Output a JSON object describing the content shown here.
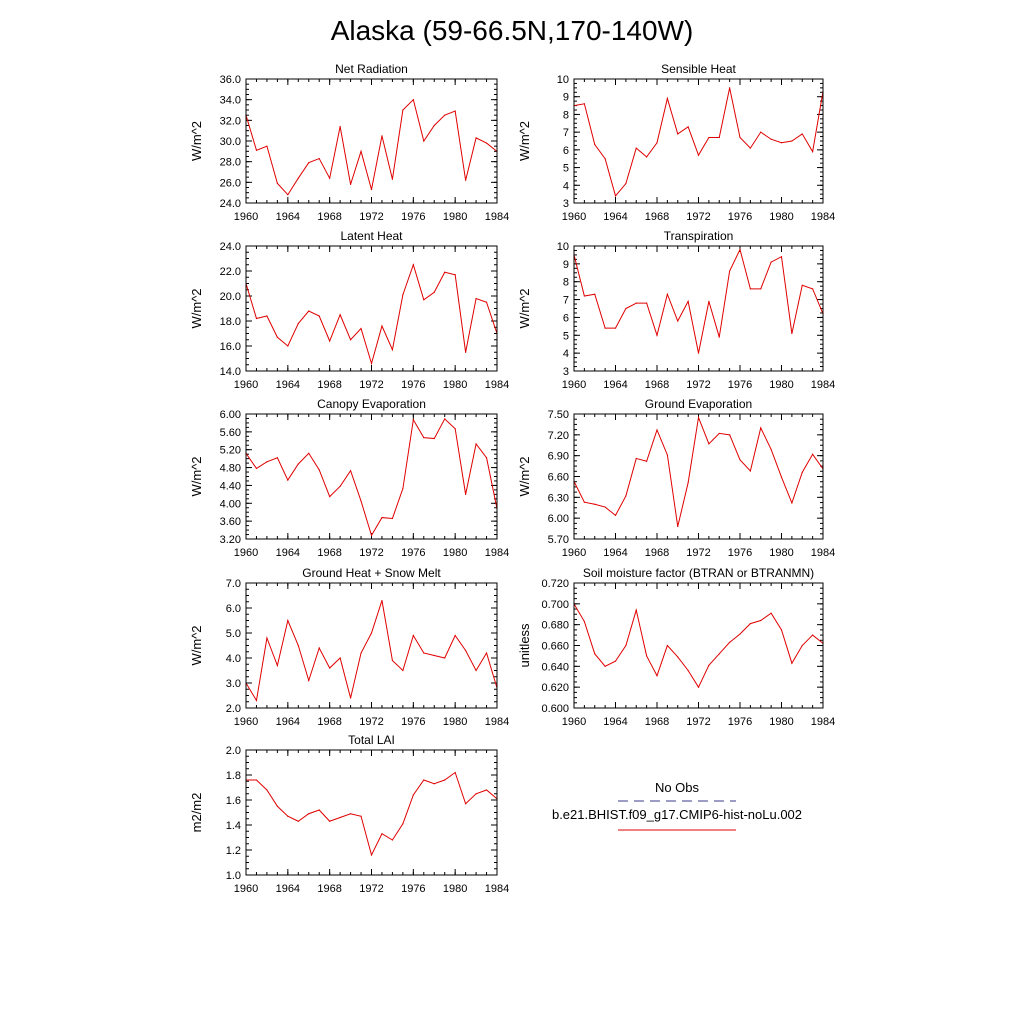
{
  "figure": {
    "title": "Alaska (59-66.5N,170-140W)",
    "legend": {
      "obs_label": "No Obs",
      "model_label": "b.e21.BHIST.f09_g17.CMIP6-hist-noLu.002",
      "obs_color": "#3a3a8c",
      "model_color": "#e00000"
    }
  },
  "chart_data": [
    {
      "type": "line",
      "title": "Net Radiation",
      "ylabel": "W/m^2",
      "xlim": [
        1960,
        1984
      ],
      "xticks": [
        1960,
        1964,
        1968,
        1972,
        1976,
        1980,
        1984
      ],
      "xtick_labels": [
        "1960",
        "1964",
        "1968",
        "1972",
        "1976",
        "1980",
        "1984"
      ],
      "ylim": [
        24,
        36
      ],
      "yticks": [
        24,
        26,
        28,
        30,
        32,
        34,
        36
      ],
      "ytick_labels": [
        "24.0",
        "26.0",
        "28.0",
        "30.0",
        "32.0",
        "34.0",
        "36.0"
      ],
      "series": [
        {
          "color": "#e00000",
          "x": [
            1960,
            1961,
            1962,
            1963,
            1964,
            1965,
            1966,
            1967,
            1968,
            1969,
            1970,
            1971,
            1972,
            1973,
            1974,
            1975,
            1976,
            1977,
            1978,
            1979,
            1980,
            1981,
            1982,
            1983,
            1984
          ],
          "values": [
            32.5,
            29.1,
            29.5,
            25.9,
            24.8,
            26.4,
            27.9,
            28.3,
            26.4,
            31.4,
            25.8,
            29.0,
            25.3,
            30.5,
            26.3,
            33.0,
            34.0,
            30.0,
            31.5,
            32.5,
            32.9,
            26.2,
            30.3,
            29.8,
            29.0
          ]
        }
      ]
    },
    {
      "type": "line",
      "title": "Sensible Heat",
      "ylabel": "W/m^2",
      "xlim": [
        1960,
        1984
      ],
      "xticks": [
        1960,
        1964,
        1968,
        1972,
        1976,
        1980,
        1984
      ],
      "xtick_labels": [
        "1960",
        "1964",
        "1968",
        "1972",
        "1976",
        "1980",
        "1984"
      ],
      "ylim": [
        3,
        10
      ],
      "yticks": [
        3,
        4,
        5,
        6,
        7,
        8,
        9,
        10
      ],
      "ytick_labels": [
        "3",
        "4",
        "5",
        "6",
        "7",
        "8",
        "9",
        "10"
      ],
      "series": [
        {
          "color": "#e00000",
          "x": [
            1960,
            1961,
            1962,
            1963,
            1964,
            1965,
            1966,
            1967,
            1968,
            1969,
            1970,
            1971,
            1972,
            1973,
            1974,
            1975,
            1976,
            1977,
            1978,
            1979,
            1980,
            1981,
            1982,
            1983,
            1984
          ],
          "values": [
            8.5,
            8.6,
            6.3,
            5.5,
            3.4,
            4.1,
            6.1,
            5.6,
            6.4,
            8.9,
            6.9,
            7.3,
            5.7,
            6.7,
            6.7,
            9.5,
            6.7,
            6.1,
            7.0,
            6.6,
            6.4,
            6.5,
            6.9,
            5.9,
            9.3
          ]
        }
      ]
    },
    {
      "type": "line",
      "title": "Latent Heat",
      "ylabel": "W/m^2",
      "xlim": [
        1960,
        1984
      ],
      "xticks": [
        1960,
        1964,
        1968,
        1972,
        1976,
        1980,
        1984
      ],
      "xtick_labels": [
        "1960",
        "1964",
        "1968",
        "1972",
        "1976",
        "1980",
        "1984"
      ],
      "ylim": [
        14,
        24
      ],
      "yticks": [
        14,
        16,
        18,
        20,
        22,
        24
      ],
      "ytick_labels": [
        "14.0",
        "16.0",
        "18.0",
        "20.0",
        "22.0",
        "24.0"
      ],
      "series": [
        {
          "color": "#e00000",
          "x": [
            1960,
            1961,
            1962,
            1963,
            1964,
            1965,
            1966,
            1967,
            1968,
            1969,
            1970,
            1971,
            1972,
            1973,
            1974,
            1975,
            1976,
            1977,
            1978,
            1979,
            1980,
            1981,
            1982,
            1983,
            1984
          ],
          "values": [
            21.0,
            18.2,
            18.4,
            16.7,
            16.0,
            17.8,
            18.8,
            18.4,
            16.4,
            18.5,
            16.5,
            17.4,
            14.6,
            17.6,
            15.7,
            20.1,
            22.5,
            19.7,
            20.3,
            21.9,
            21.7,
            15.5,
            19.8,
            19.5,
            17.0
          ]
        }
      ]
    },
    {
      "type": "line",
      "title": "Transpiration",
      "ylabel": "W/m^2",
      "xlim": [
        1960,
        1984
      ],
      "xticks": [
        1960,
        1964,
        1968,
        1972,
        1976,
        1980,
        1984
      ],
      "xtick_labels": [
        "1960",
        "1964",
        "1968",
        "1972",
        "1976",
        "1980",
        "1984"
      ],
      "ylim": [
        3,
        10
      ],
      "yticks": [
        3,
        4,
        5,
        6,
        7,
        8,
        9,
        10
      ],
      "ytick_labels": [
        "3",
        "4",
        "5",
        "6",
        "7",
        "8",
        "9",
        "10"
      ],
      "series": [
        {
          "color": "#e00000",
          "x": [
            1960,
            1961,
            1962,
            1963,
            1964,
            1965,
            1966,
            1967,
            1968,
            1969,
            1970,
            1971,
            1972,
            1973,
            1974,
            1975,
            1976,
            1977,
            1978,
            1979,
            1980,
            1981,
            1982,
            1983,
            1984
          ],
          "values": [
            9.5,
            7.2,
            7.3,
            5.4,
            5.4,
            6.5,
            6.8,
            6.8,
            5.0,
            7.3,
            5.8,
            6.9,
            4.0,
            6.9,
            4.9,
            8.6,
            9.8,
            7.6,
            7.6,
            9.1,
            9.4,
            5.1,
            7.8,
            7.6,
            6.2
          ]
        }
      ]
    },
    {
      "type": "line",
      "title": "Canopy Evaporation",
      "ylabel": "W/m^2",
      "xlim": [
        1960,
        1984
      ],
      "xticks": [
        1960,
        1964,
        1968,
        1972,
        1976,
        1980,
        1984
      ],
      "xtick_labels": [
        "1960",
        "1964",
        "1968",
        "1972",
        "1976",
        "1980",
        "1984"
      ],
      "ylim": [
        3.2,
        6.0
      ],
      "yticks": [
        3.2,
        3.6,
        4.0,
        4.4,
        4.8,
        5.2,
        5.6,
        6.0
      ],
      "ytick_labels": [
        "3.20",
        "3.60",
        "4.00",
        "4.40",
        "4.80",
        "5.20",
        "5.60",
        "6.00"
      ],
      "series": [
        {
          "color": "#e00000",
          "x": [
            1960,
            1961,
            1962,
            1963,
            1964,
            1965,
            1966,
            1967,
            1968,
            1969,
            1970,
            1971,
            1972,
            1973,
            1974,
            1975,
            1976,
            1977,
            1978,
            1979,
            1980,
            1981,
            1982,
            1983,
            1984
          ],
          "values": [
            5.12,
            4.78,
            4.93,
            5.02,
            4.52,
            4.88,
            5.12,
            4.75,
            4.15,
            4.38,
            4.73,
            4.05,
            3.28,
            3.68,
            3.66,
            4.33,
            5.87,
            5.47,
            5.45,
            5.89,
            5.67,
            4.2,
            5.33,
            5.02,
            3.88
          ]
        }
      ]
    },
    {
      "type": "line",
      "title": "Ground Evaporation",
      "ylabel": "W/m^2",
      "xlim": [
        1960,
        1984
      ],
      "xticks": [
        1960,
        1964,
        1968,
        1972,
        1976,
        1980,
        1984
      ],
      "xtick_labels": [
        "1960",
        "1964",
        "1968",
        "1972",
        "1976",
        "1980",
        "1984"
      ],
      "ylim": [
        5.7,
        7.5
      ],
      "yticks": [
        5.7,
        6.0,
        6.3,
        6.6,
        6.9,
        7.2,
        7.5
      ],
      "ytick_labels": [
        "5.70",
        "6.00",
        "6.30",
        "6.60",
        "6.90",
        "7.20",
        "7.50"
      ],
      "series": [
        {
          "color": "#e00000",
          "x": [
            1960,
            1961,
            1962,
            1963,
            1964,
            1965,
            1966,
            1967,
            1968,
            1969,
            1970,
            1971,
            1972,
            1973,
            1974,
            1975,
            1976,
            1977,
            1978,
            1979,
            1980,
            1981,
            1982,
            1983,
            1984
          ],
          "values": [
            6.53,
            6.23,
            6.2,
            6.16,
            6.04,
            6.32,
            6.86,
            6.82,
            7.27,
            6.91,
            5.88,
            6.51,
            7.45,
            7.07,
            7.22,
            7.2,
            6.84,
            6.68,
            7.3,
            6.99,
            6.59,
            6.22,
            6.66,
            6.92,
            6.71
          ]
        }
      ]
    },
    {
      "type": "line",
      "title": "Ground Heat + Snow Melt",
      "ylabel": "W/m^2",
      "xlim": [
        1960,
        1984
      ],
      "xticks": [
        1960,
        1964,
        1968,
        1972,
        1976,
        1980,
        1984
      ],
      "xtick_labels": [
        "1960",
        "1964",
        "1968",
        "1972",
        "1976",
        "1980",
        "1984"
      ],
      "ylim": [
        2,
        7
      ],
      "yticks": [
        2,
        3,
        4,
        5,
        6,
        7
      ],
      "ytick_labels": [
        "2.0",
        "3.0",
        "4.0",
        "5.0",
        "6.0",
        "7.0"
      ],
      "series": [
        {
          "color": "#e00000",
          "x": [
            1960,
            1961,
            1962,
            1963,
            1964,
            1965,
            1966,
            1967,
            1968,
            1969,
            1970,
            1971,
            1972,
            1973,
            1974,
            1975,
            1976,
            1977,
            1978,
            1979,
            1980,
            1981,
            1982,
            1983,
            1984
          ],
          "values": [
            3.0,
            2.3,
            4.8,
            3.7,
            5.5,
            4.5,
            3.1,
            4.4,
            3.6,
            4.0,
            2.4,
            4.2,
            5.0,
            6.3,
            3.9,
            3.5,
            4.9,
            4.2,
            4.1,
            4.0,
            4.9,
            4.3,
            3.5,
            4.2,
            2.8
          ]
        }
      ]
    },
    {
      "type": "line",
      "title": "Soil moisture factor (BTRAN or BTRANMN)",
      "ylabel": "unitless",
      "xlim": [
        1960,
        1984
      ],
      "xticks": [
        1960,
        1964,
        1968,
        1972,
        1976,
        1980,
        1984
      ],
      "xtick_labels": [
        "1960",
        "1964",
        "1968",
        "1972",
        "1976",
        "1980",
        "1984"
      ],
      "ylim": [
        0.6,
        0.72
      ],
      "yticks": [
        0.6,
        0.62,
        0.64,
        0.66,
        0.68,
        0.7,
        0.72
      ],
      "ytick_labels": [
        "0.600",
        "0.620",
        "0.640",
        "0.660",
        "0.680",
        "0.700",
        "0.720"
      ],
      "series": [
        {
          "color": "#e00000",
          "x": [
            1960,
            1961,
            1962,
            1963,
            1964,
            1965,
            1966,
            1967,
            1968,
            1969,
            1970,
            1971,
            1972,
            1973,
            1974,
            1975,
            1976,
            1977,
            1978,
            1979,
            1980,
            1981,
            1982,
            1983,
            1984
          ],
          "values": [
            0.7,
            0.683,
            0.652,
            0.64,
            0.645,
            0.66,
            0.694,
            0.65,
            0.631,
            0.66,
            0.649,
            0.636,
            0.62,
            0.641,
            0.652,
            0.663,
            0.671,
            0.681,
            0.684,
            0.691,
            0.675,
            0.643,
            0.66,
            0.67,
            0.662
          ]
        }
      ]
    },
    {
      "type": "line",
      "title": "Total LAI",
      "ylabel": "m2/m2",
      "xlim": [
        1960,
        1984
      ],
      "xticks": [
        1960,
        1964,
        1968,
        1972,
        1976,
        1980,
        1984
      ],
      "xtick_labels": [
        "1960",
        "1964",
        "1968",
        "1972",
        "1976",
        "1980",
        "1984"
      ],
      "ylim": [
        1.0,
        2.0
      ],
      "yticks": [
        1.0,
        1.2,
        1.4,
        1.6,
        1.8,
        2.0
      ],
      "ytick_labels": [
        "1.0",
        "1.2",
        "1.4",
        "1.6",
        "1.8",
        "2.0"
      ],
      "series": [
        {
          "color": "#e00000",
          "x": [
            1960,
            1961,
            1962,
            1963,
            1964,
            1965,
            1966,
            1967,
            1968,
            1969,
            1970,
            1971,
            1972,
            1973,
            1974,
            1975,
            1976,
            1977,
            1978,
            1979,
            1980,
            1981,
            1982,
            1983,
            1984
          ],
          "values": [
            1.76,
            1.76,
            1.68,
            1.55,
            1.47,
            1.43,
            1.49,
            1.52,
            1.43,
            1.46,
            1.49,
            1.47,
            1.16,
            1.33,
            1.28,
            1.41,
            1.64,
            1.76,
            1.73,
            1.76,
            1.82,
            1.57,
            1.65,
            1.68,
            1.61
          ]
        }
      ]
    }
  ]
}
